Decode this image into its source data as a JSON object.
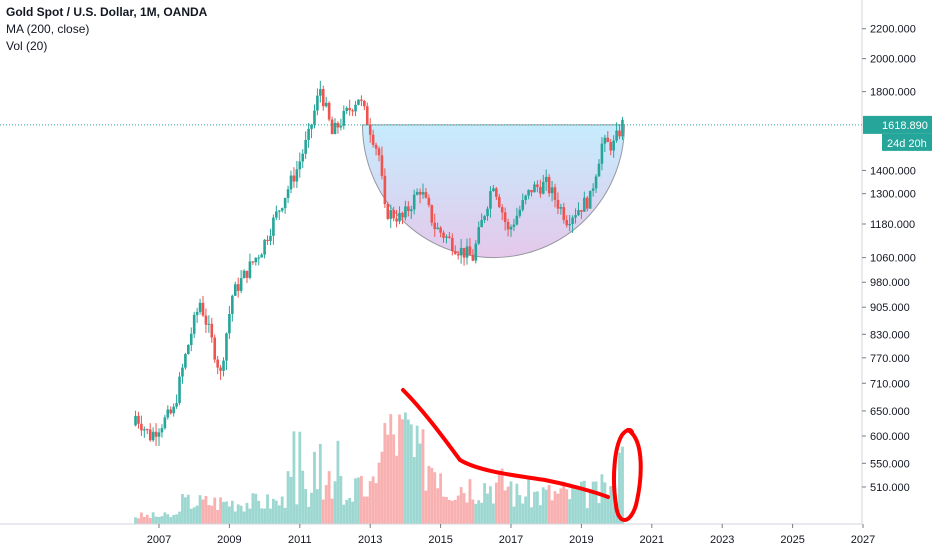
{
  "legend": {
    "symbol_title": "Gold Spot / U.S. Dollar, 1M, OANDA",
    "ma_label": "MA (200, close)",
    "vol_label": "Vol (20)"
  },
  "price_tag": {
    "value": "1618.890",
    "countdown": "24d 20h",
    "color": "#26a69a"
  },
  "colors": {
    "up": "#26a69a",
    "down": "#ef5350",
    "cup_fill_top": "#b3e5fc",
    "cup_fill_bottom": "#e1bee7",
    "annotation": "#ff0000"
  },
  "chart_data": {
    "type": "candlestick",
    "y_axis": {
      "scale": "log",
      "ticks": [
        "2200.000",
        "2000.000",
        "1800.000",
        "1618.890",
        "1400.000",
        "1300.000",
        "1180.000",
        "1060.000",
        "980.000",
        "905.000",
        "830.000",
        "770.000",
        "710.000",
        "650.000",
        "600.000",
        "550.000",
        "510.000"
      ]
    },
    "x_axis": {
      "ticks": [
        "2007",
        "2009",
        "2011",
        "2013",
        "2015",
        "2017",
        "2019",
        "2021",
        "2023",
        "2025",
        "2027"
      ]
    },
    "monthly_close_points": [
      {
        "date": "2006-05",
        "close": 640
      },
      {
        "date": "2006-10",
        "close": 600
      },
      {
        "date": "2007-06",
        "close": 650
      },
      {
        "date": "2007-12",
        "close": 835
      },
      {
        "date": "2008-03",
        "close": 920
      },
      {
        "date": "2008-10",
        "close": 730
      },
      {
        "date": "2009-02",
        "close": 940
      },
      {
        "date": "2009-12",
        "close": 1090
      },
      {
        "date": "2010-06",
        "close": 1240
      },
      {
        "date": "2010-12",
        "close": 1405
      },
      {
        "date": "2011-04",
        "close": 1560
      },
      {
        "date": "2011-08",
        "close": 1820
      },
      {
        "date": "2011-12",
        "close": 1570
      },
      {
        "date": "2012-09",
        "close": 1770
      },
      {
        "date": "2013-04",
        "close": 1470
      },
      {
        "date": "2013-06",
        "close": 1230
      },
      {
        "date": "2013-12",
        "close": 1200
      },
      {
        "date": "2014-06",
        "close": 1320
      },
      {
        "date": "2014-11",
        "close": 1170
      },
      {
        "date": "2015-07",
        "close": 1090
      },
      {
        "date": "2015-12",
        "close": 1060
      },
      {
        "date": "2016-07",
        "close": 1350
      },
      {
        "date": "2016-12",
        "close": 1150
      },
      {
        "date": "2017-08",
        "close": 1320
      },
      {
        "date": "2018-01",
        "close": 1340
      },
      {
        "date": "2018-08",
        "close": 1200
      },
      {
        "date": "2019-04",
        "close": 1280
      },
      {
        "date": "2019-08",
        "close": 1520
      },
      {
        "date": "2019-12",
        "close": 1520
      },
      {
        "date": "2020-03",
        "close": 1620
      }
    ],
    "current_price": 1618.89,
    "cup_pattern": {
      "left_date": "2012-09",
      "right_date": "2020-03",
      "rim_price": 1618.89,
      "bottom_price": 1060
    },
    "volume_series": {
      "name": "Vol (20)",
      "annotation": "declining volume into spike near 2020"
    }
  }
}
